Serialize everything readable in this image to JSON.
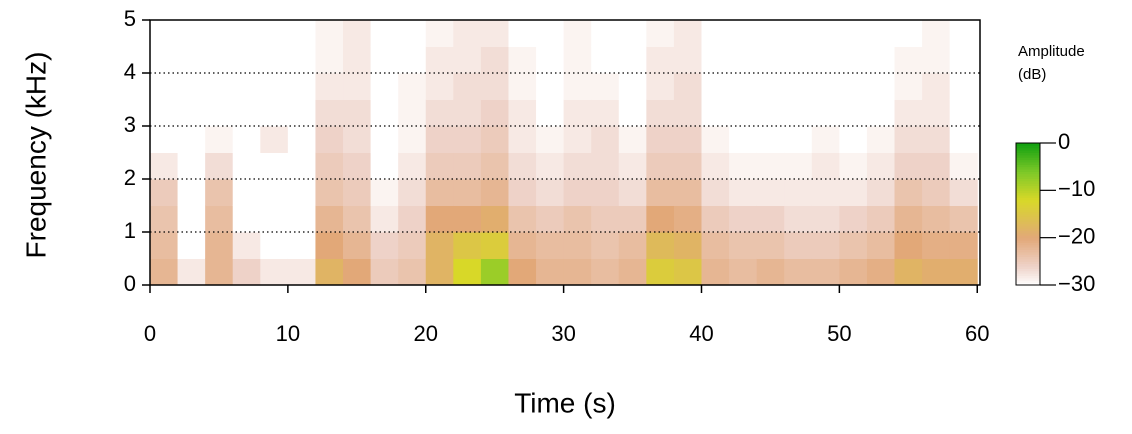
{
  "chart_data": {
    "type": "heatmap",
    "x_label": "Time (s)",
    "y_label": "Frequency (kHz)",
    "colorbar_title": [
      "Amplitude",
      "(dB)"
    ],
    "x": [
      1,
      3,
      5,
      7,
      9,
      11,
      13,
      15,
      17,
      19,
      21,
      23,
      25,
      27,
      29,
      31,
      33,
      35,
      37,
      39,
      41,
      43,
      45,
      47,
      49,
      51,
      53,
      55,
      57,
      59
    ],
    "y": [
      0.25,
      0.75,
      1.25,
      1.75,
      2.25,
      2.75,
      3.25,
      3.75,
      4.25,
      4.75
    ],
    "z": [
      [
        -22,
        -23,
        -24,
        -25,
        -28,
        -30,
        -30,
        -30,
        -30,
        -30
      ],
      [
        -28,
        -30,
        -30,
        -30,
        -30,
        -30,
        -30,
        -30,
        -30,
        -30
      ],
      [
        -22,
        -22,
        -23,
        -24,
        -27,
        -29,
        -30,
        -30,
        -30,
        -30
      ],
      [
        -26,
        -28,
        -30,
        -30,
        -30,
        -30,
        -30,
        -30,
        -30,
        -30
      ],
      [
        -28,
        -30,
        -30,
        -30,
        -30,
        -28,
        -30,
        -30,
        -30,
        -30
      ],
      [
        -28,
        -30,
        -30,
        -30,
        -30,
        -30,
        -30,
        -30,
        -30,
        -30
      ],
      [
        -18,
        -20,
        -22,
        -24,
        -25,
        -26,
        -27,
        -28,
        -29,
        -29
      ],
      [
        -20,
        -22,
        -24,
        -25,
        -26,
        -27,
        -27,
        -28,
        -28,
        -28
      ],
      [
        -25,
        -26,
        -28,
        -29,
        -30,
        -30,
        -30,
        -30,
        -30,
        -30
      ],
      [
        -24,
        -25,
        -26,
        -27,
        -28,
        -29,
        -29,
        -29,
        -30,
        -30
      ],
      [
        -18,
        -18,
        -20,
        -23,
        -25,
        -26,
        -27,
        -28,
        -28,
        -29
      ],
      [
        -12,
        -15,
        -20,
        -23,
        -25,
        -26,
        -27,
        -27,
        -28,
        -28
      ],
      [
        -8,
        -14,
        -19,
        -22,
        -24,
        -25,
        -26,
        -27,
        -27,
        -28
      ],
      [
        -20,
        -22,
        -24,
        -26,
        -27,
        -28,
        -28,
        -29,
        -29,
        -30
      ],
      [
        -22,
        -23,
        -25,
        -27,
        -28,
        -29,
        -30,
        -30,
        -30,
        -30
      ],
      [
        -22,
        -23,
        -24,
        -26,
        -27,
        -28,
        -28,
        -29,
        -29,
        -29
      ],
      [
        -23,
        -24,
        -25,
        -26,
        -27,
        -27,
        -28,
        -29,
        -30,
        -30
      ],
      [
        -22,
        -23,
        -25,
        -27,
        -28,
        -29,
        -30,
        -30,
        -30,
        -30
      ],
      [
        -14,
        -17,
        -20,
        -23,
        -25,
        -26,
        -27,
        -28,
        -28,
        -29
      ],
      [
        -15,
        -18,
        -21,
        -23,
        -25,
        -26,
        -27,
        -27,
        -28,
        -28
      ],
      [
        -22,
        -23,
        -25,
        -27,
        -28,
        -29,
        -30,
        -30,
        -30,
        -30
      ],
      [
        -23,
        -24,
        -26,
        -28,
        -29,
        -30,
        -30,
        -30,
        -30,
        -30
      ],
      [
        -22,
        -24,
        -26,
        -28,
        -29,
        -30,
        -30,
        -30,
        -30,
        -30
      ],
      [
        -23,
        -25,
        -27,
        -28,
        -29,
        -30,
        -30,
        -30,
        -30,
        -30
      ],
      [
        -23,
        -25,
        -27,
        -28,
        -28,
        -29,
        -30,
        -30,
        -30,
        -30
      ],
      [
        -22,
        -24,
        -26,
        -28,
        -29,
        -30,
        -30,
        -30,
        -30,
        -30
      ],
      [
        -21,
        -23,
        -25,
        -27,
        -28,
        -29,
        -30,
        -30,
        -30,
        -30
      ],
      [
        -18,
        -20,
        -22,
        -24,
        -26,
        -27,
        -28,
        -29,
        -29,
        -30
      ],
      [
        -19,
        -21,
        -23,
        -25,
        -26,
        -27,
        -28,
        -28,
        -29,
        -29
      ],
      [
        -19,
        -21,
        -24,
        -27,
        -29,
        -30,
        -30,
        -30,
        -30,
        -30
      ]
    ],
    "xlim": [
      0,
      60.2
    ],
    "xticks": [
      0,
      10,
      20,
      30,
      40,
      50,
      60
    ],
    "ylim": [
      0,
      5
    ],
    "yticks": [
      0,
      1,
      2,
      3,
      4,
      5
    ],
    "grid": true,
    "zlim": [
      -30,
      0
    ],
    "zticks": [
      0,
      {
        "value": -10,
        "label": "−10"
      },
      {
        "value": -20,
        "label": "−20"
      },
      {
        "value": -30,
        "label": "−30"
      }
    ],
    "colorscale": [
      {
        "value": -30,
        "color": "#ffffff"
      },
      {
        "value": -26,
        "color": "#eed2c8"
      },
      {
        "value": -20,
        "color": "#e2a878"
      },
      {
        "value": -12,
        "color": "#d8d828"
      },
      {
        "value": -6,
        "color": "#7cc828"
      },
      {
        "value": 0,
        "color": "#10a010"
      }
    ]
  }
}
